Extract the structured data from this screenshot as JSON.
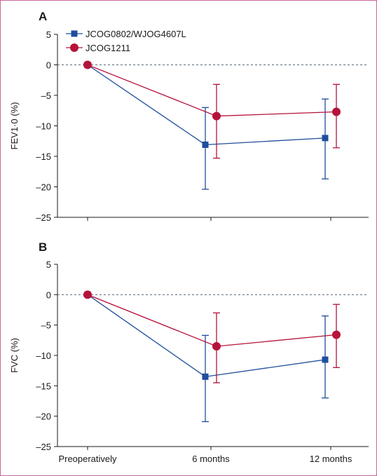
{
  "chart_data": [
    {
      "type": "line",
      "panel_label": "A",
      "ylabel": "FEV1·0 (%)",
      "ylim": [
        -25,
        5
      ],
      "yticks": [
        5,
        0,
        -5,
        -10,
        -15,
        -20,
        -25
      ],
      "ytick_labels": [
        "5",
        "0",
        "–5",
        "–10",
        "–15",
        "–20",
        "–25"
      ],
      "categories": [
        "Preoperatively",
        "6 months",
        "12 months"
      ],
      "reference_line": 0,
      "legend": "top-left",
      "series": [
        {
          "name": "JCOG0802/WJOG4607L",
          "color": "#1f4e9c",
          "marker": "square",
          "values": [
            0,
            -13.1,
            -12.0
          ],
          "error_low": [
            0,
            -20.4,
            -18.7
          ],
          "error_high": [
            0,
            -7.0,
            -5.6
          ]
        },
        {
          "name": "JCOG1211",
          "color": "#b5133a",
          "marker": "circle",
          "values": [
            0,
            -8.4,
            -7.7
          ],
          "error_low": [
            0,
            -15.3,
            -13.6
          ],
          "error_high": [
            0,
            -3.2,
            -3.2
          ]
        }
      ]
    },
    {
      "type": "line",
      "panel_label": "B",
      "ylabel": "FVC (%)",
      "ylim": [
        -25,
        5
      ],
      "yticks": [
        5,
        0,
        -5,
        -10,
        -15,
        -20,
        -25
      ],
      "ytick_labels": [
        "5",
        "0",
        "–5",
        "–10",
        "–15",
        "–20",
        "–25"
      ],
      "categories": [
        "Preoperatively",
        "6 months",
        "12 months"
      ],
      "reference_line": 0,
      "series": [
        {
          "name": "JCOG0802/WJOG4607L",
          "color": "#1f4e9c",
          "marker": "square",
          "values": [
            0,
            -13.5,
            -10.7
          ],
          "error_low": [
            0,
            -20.9,
            -17.0
          ],
          "error_high": [
            0,
            -6.7,
            -3.5
          ]
        },
        {
          "name": "JCOG1211",
          "color": "#b5133a",
          "marker": "circle",
          "values": [
            0,
            -8.5,
            -6.6
          ],
          "error_low": [
            0,
            -14.5,
            -12.0
          ],
          "error_high": [
            0,
            -3.0,
            -1.6
          ]
        }
      ]
    }
  ]
}
